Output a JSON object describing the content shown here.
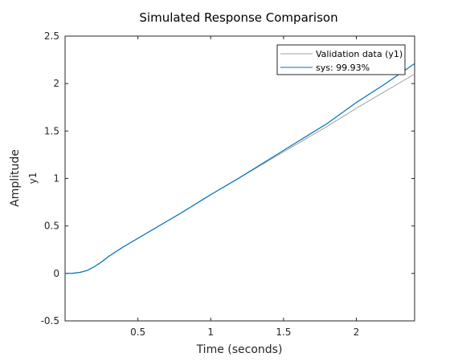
{
  "chart_data": {
    "type": "line",
    "title": "Simulated Response Comparison",
    "xlabel": "Time (seconds)",
    "ylabel": "Amplitude",
    "ylabel_channel": "y1",
    "xlim": [
      0,
      2.4
    ],
    "ylim": [
      -0.5,
      2.5
    ],
    "x_ticks": [
      0.5,
      1,
      1.5,
      2
    ],
    "x_tick_labels": [
      "0.5",
      "1",
      "1.5",
      "2"
    ],
    "y_ticks": [
      -0.5,
      0,
      0.5,
      1,
      1.5,
      2,
      2.5
    ],
    "y_tick_labels": [
      "-0.5",
      "0",
      "0.5",
      "1",
      "1.5",
      "2",
      "2.5"
    ],
    "grid": false,
    "legend_position": "top-right",
    "series": [
      {
        "name": "Validation data (y1)",
        "color": "#a0a0a0",
        "x": [
          0,
          0.05,
          0.1,
          0.15,
          0.2,
          0.25,
          0.3,
          0.35,
          0.4,
          0.5,
          0.6,
          0.8,
          1.0,
          1.2,
          1.4,
          1.6,
          1.8,
          2.0,
          2.2,
          2.4
        ],
        "y": [
          0,
          0.002,
          0.01,
          0.03,
          0.07,
          0.12,
          0.18,
          0.23,
          0.28,
          0.37,
          0.46,
          0.64,
          0.83,
          1.01,
          1.19,
          1.37,
          1.55,
          1.74,
          1.92,
          2.1
        ]
      },
      {
        "name": "sys: 99.93%",
        "color": "#0072bd",
        "x": [
          0,
          0.05,
          0.1,
          0.15,
          0.2,
          0.25,
          0.3,
          0.35,
          0.4,
          0.5,
          0.6,
          0.8,
          1.0,
          1.2,
          1.4,
          1.6,
          1.8,
          2.0,
          2.2,
          2.4
        ],
        "y": [
          0,
          0.002,
          0.01,
          0.03,
          0.07,
          0.12,
          0.18,
          0.23,
          0.28,
          0.37,
          0.46,
          0.64,
          0.83,
          1.01,
          1.2,
          1.39,
          1.58,
          1.8,
          2.0,
          2.21
        ]
      }
    ]
  }
}
